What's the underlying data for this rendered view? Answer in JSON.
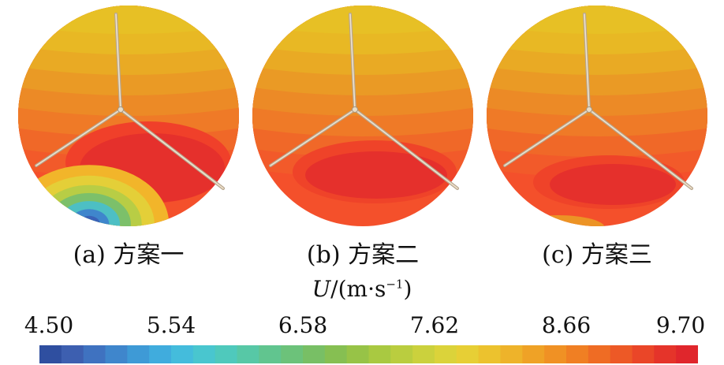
{
  "panels": [
    {
      "id": "a",
      "caption": "(a) 方案一",
      "bands": [
        "#e7c025",
        "#e8b824",
        "#e9aa24",
        "#ea9a25",
        "#ec8a26",
        "#ef7a27",
        "#f06828",
        "#f25a2a",
        "#f4502b"
      ],
      "core": {
        "color": "#e5302c"
      },
      "low_speed_corner": true,
      "yellow_lip": false
    },
    {
      "id": "b",
      "caption": "(b) 方案二",
      "bands": [
        "#e7c025",
        "#e8b824",
        "#e9aa24",
        "#ea9a25",
        "#ec8a26",
        "#ef7a27",
        "#f06828",
        "#f25a2a",
        "#f4502b"
      ],
      "core": {
        "color": "#e5302c"
      },
      "low_speed_corner": false,
      "yellow_lip": false
    },
    {
      "id": "c",
      "caption": "(c) 方案三",
      "bands": [
        "#e7c025",
        "#e8b824",
        "#e9aa24",
        "#ea9a25",
        "#ec8a26",
        "#ef7a27",
        "#f06828",
        "#f25a2a",
        "#f4502b"
      ],
      "core": {
        "color": "#e5302c"
      },
      "low_speed_corner": false,
      "yellow_lip": true
    }
  ],
  "legend": {
    "unit_symbol": "U",
    "unit_rest": "/(m·s",
    "unit_exp": "−1",
    "unit_close": ")",
    "ticks": [
      "4.50",
      "5.54",
      "6.58",
      "7.62",
      "8.66",
      "9.70"
    ],
    "min": 4.5,
    "max": 9.7,
    "colors": [
      "#2f4fa0",
      "#3d5fb0",
      "#3f72c0",
      "#3f86cc",
      "#3e9ad6",
      "#40acdd",
      "#44bcdc",
      "#49c6cf",
      "#4fc9bc",
      "#57c8a6",
      "#61c58f",
      "#6cc27a",
      "#78bf65",
      "#86bf52",
      "#97c347",
      "#a9c941",
      "#bacd3f",
      "#cbd13d",
      "#dbd33a",
      "#e7cf35",
      "#ecc22e",
      "#eeb32a",
      "#efa226",
      "#f09124",
      "#f07f23",
      "#ef6c24",
      "#ed5926",
      "#ea4628",
      "#e5342a",
      "#e0262c"
    ]
  }
}
